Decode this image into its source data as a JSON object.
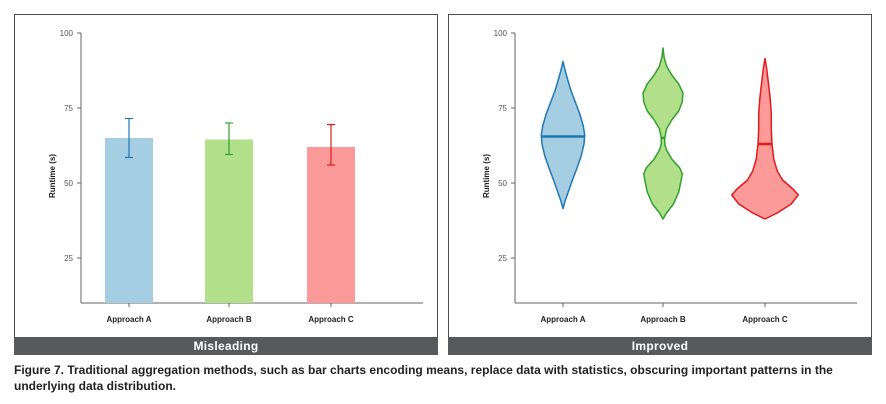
{
  "chart_data": [
    {
      "type": "bar",
      "ylabel": "Runtime (s)",
      "ylim": [
        10,
        100
      ],
      "yticks": [
        25,
        50,
        75,
        100
      ],
      "categories": [
        "Approach A",
        "Approach B",
        "Approach C"
      ],
      "values": [
        65,
        64.5,
        62
      ],
      "error_low": [
        58.5,
        59.5,
        56
      ],
      "error_high": [
        71.5,
        70,
        69.5
      ],
      "colors": [
        "#a6cee3",
        "#b2df8a",
        "#fb9a99"
      ],
      "error_colors": [
        "#1f78b4",
        "#33a02c",
        "#e31a1c"
      ],
      "footer": "Misleading"
    },
    {
      "type": "violin",
      "ylabel": "Runtime (s)",
      "ylim": [
        10,
        100
      ],
      "yticks": [
        25,
        50,
        75,
        100
      ],
      "categories": [
        "Approach A",
        "Approach B",
        "Approach C"
      ],
      "medians": [
        65.5,
        65,
        63
      ],
      "fill_colors": [
        "#a6cee3",
        "#b2df8a",
        "#fb9a99"
      ],
      "line_colors": [
        "#1f78b4",
        "#33a02c",
        "#e31a1c"
      ],
      "distributions": [
        [
          [
            41.5,
            0
          ],
          [
            44,
            0.06
          ],
          [
            47,
            0.15
          ],
          [
            51,
            0.27
          ],
          [
            55,
            0.4
          ],
          [
            59,
            0.52
          ],
          [
            63,
            0.6
          ],
          [
            66,
            0.62
          ],
          [
            69,
            0.58
          ],
          [
            73,
            0.48
          ],
          [
            77,
            0.35
          ],
          [
            81,
            0.22
          ],
          [
            85,
            0.12
          ],
          [
            88,
            0.05
          ],
          [
            90.5,
            0
          ]
        ],
        [
          [
            38,
            0
          ],
          [
            40,
            0.1
          ],
          [
            43,
            0.3
          ],
          [
            47,
            0.45
          ],
          [
            51,
            0.52
          ],
          [
            53,
            0.55
          ],
          [
            55,
            0.48
          ],
          [
            58,
            0.25
          ],
          [
            61,
            0.1
          ],
          [
            63,
            0.05
          ],
          [
            65,
            0.05
          ],
          [
            68,
            0.1
          ],
          [
            71,
            0.25
          ],
          [
            74,
            0.45
          ],
          [
            77,
            0.55
          ],
          [
            80,
            0.57
          ],
          [
            83,
            0.45
          ],
          [
            86,
            0.25
          ],
          [
            89,
            0.1
          ],
          [
            92,
            0.03
          ],
          [
            95,
            0
          ]
        ],
        [
          [
            38,
            0
          ],
          [
            40,
            0.35
          ],
          [
            43,
            0.75
          ],
          [
            46,
            0.95
          ],
          [
            48,
            0.8
          ],
          [
            51,
            0.5
          ],
          [
            54,
            0.35
          ],
          [
            58,
            0.25
          ],
          [
            63,
            0.2
          ],
          [
            68,
            0.18
          ],
          [
            73,
            0.18
          ],
          [
            78,
            0.15
          ],
          [
            83,
            0.1
          ],
          [
            88,
            0.05
          ],
          [
            91.5,
            0
          ]
        ]
      ],
      "footer": "Improved"
    }
  ],
  "caption": "Figure 7. Traditional aggregation methods, such as bar charts encoding means, replace data with statistics, obscuring important patterns in the underlying data distribution."
}
